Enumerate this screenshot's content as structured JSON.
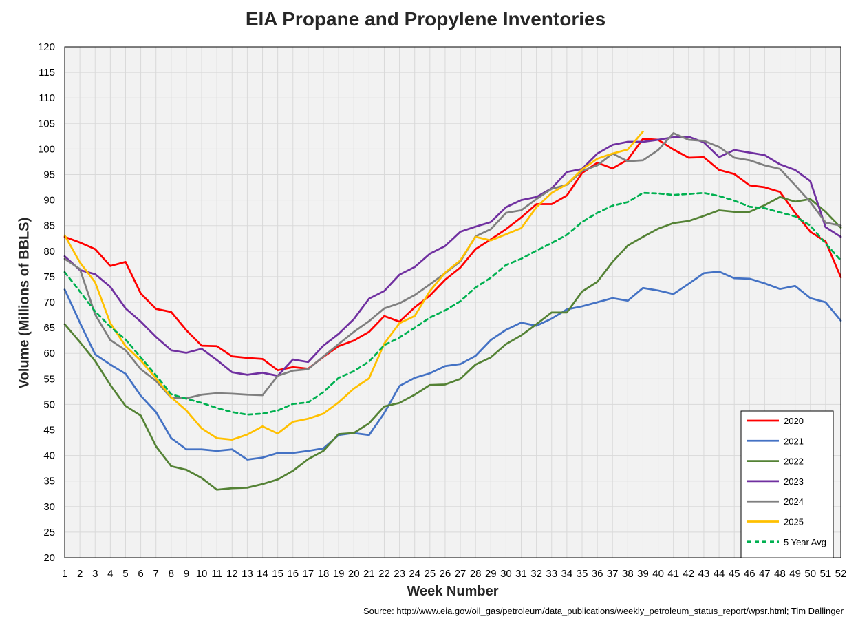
{
  "chart_data": {
    "type": "line",
    "title": "EIA Propane and Propylene Inventories",
    "xlabel": "Week Number",
    "ylabel": "Volume (Millions of BBLS)",
    "source": "Source: http://www.eia.gov/oil_gas/petroleum/data_publications/weekly_petroleum_status_report/wpsr.html; Tim Dallinger",
    "xlim": [
      1,
      52
    ],
    "ylim": [
      20,
      120
    ],
    "ytick_step": 5,
    "grid": true,
    "legend_position": "bottom-right",
    "x": [
      1,
      2,
      3,
      4,
      5,
      6,
      7,
      8,
      9,
      10,
      11,
      12,
      13,
      14,
      15,
      16,
      17,
      18,
      19,
      20,
      21,
      22,
      23,
      24,
      25,
      26,
      27,
      28,
      29,
      30,
      31,
      32,
      33,
      34,
      35,
      36,
      37,
      38,
      39,
      40,
      41,
      42,
      43,
      44,
      45,
      46,
      47,
      48,
      49,
      50,
      51,
      52
    ],
    "series": [
      {
        "name": "2020",
        "color": "#ff0000",
        "dashed": false,
        "values": [
          82.8,
          81.7,
          80.4,
          77.1,
          77.9,
          71.7,
          68.7,
          68.1,
          64.5,
          61.5,
          61.4,
          59.4,
          59.1,
          58.9,
          56.7,
          57.3,
          57.0,
          59.3,
          61.4,
          62.5,
          64.2,
          67.3,
          66.2,
          69.0,
          71.3,
          74.4,
          76.8,
          80.4,
          82.3,
          84.3,
          86.6,
          89.2,
          89.2,
          90.9,
          95.3,
          97.3,
          96.2,
          97.9,
          102.0,
          101.8,
          99.9,
          98.3,
          98.4,
          95.9,
          95.1,
          92.9,
          92.5,
          91.6,
          87.5,
          83.8,
          81.9,
          74.9
        ]
      },
      {
        "name": "2021",
        "color": "#4472c4",
        "dashed": false,
        "values": [
          72.5,
          66.0,
          59.8,
          57.8,
          56.0,
          51.7,
          48.5,
          43.4,
          41.2,
          41.2,
          40.9,
          41.2,
          39.2,
          39.6,
          40.5,
          40.5,
          40.9,
          41.4,
          44.0,
          44.4,
          44.0,
          48.3,
          53.6,
          55.2,
          56.1,
          57.5,
          57.9,
          59.5,
          62.6,
          64.6,
          66.0,
          65.4,
          66.8,
          68.6,
          69.2,
          70.0,
          70.8,
          70.3,
          72.8,
          72.3,
          71.6,
          73.6,
          75.7,
          76.0,
          74.7,
          74.6,
          73.7,
          72.6,
          73.2,
          70.8,
          70.0,
          66.4
        ]
      },
      {
        "name": "2022",
        "color": "#548235",
        "dashed": false,
        "values": [
          65.7,
          62.2,
          58.5,
          53.8,
          49.7,
          47.8,
          41.8,
          37.9,
          37.2,
          35.6,
          33.3,
          33.6,
          33.7,
          34.4,
          35.3,
          37.0,
          39.3,
          40.9,
          44.2,
          44.4,
          46.3,
          49.6,
          50.3,
          51.9,
          53.8,
          53.9,
          55.0,
          57.8,
          59.2,
          61.8,
          63.5,
          65.7,
          68.0,
          68.0,
          72.1,
          74.0,
          77.9,
          81.1,
          82.8,
          84.4,
          85.5,
          85.9,
          86.9,
          88.0,
          87.7,
          87.7,
          89.0,
          90.6,
          89.7,
          90.2,
          87.7,
          84.6
        ]
      },
      {
        "name": "2023",
        "color": "#7030a0",
        "dashed": false,
        "values": [
          79.0,
          76.3,
          75.5,
          73.0,
          68.8,
          66.2,
          63.2,
          60.6,
          60.1,
          60.9,
          58.7,
          56.3,
          55.8,
          56.2,
          55.6,
          58.8,
          58.3,
          61.5,
          63.8,
          66.7,
          70.7,
          72.2,
          75.4,
          76.9,
          79.5,
          81.0,
          83.8,
          84.8,
          85.7,
          88.6,
          90.0,
          90.6,
          92.3,
          95.5,
          96.1,
          99.1,
          100.8,
          101.4,
          101.4,
          101.8,
          102.3,
          102.4,
          101.3,
          98.4,
          99.8,
          99.3,
          98.8,
          97.0,
          95.9,
          93.7,
          84.7,
          82.8
        ]
      },
      {
        "name": "2024",
        "color": "#7f7f7f",
        "dashed": false,
        "values": [
          78.5,
          76.5,
          67.6,
          62.6,
          60.6,
          56.9,
          54.6,
          51.3,
          51.2,
          51.9,
          52.2,
          52.1,
          51.9,
          51.8,
          55.6,
          56.6,
          56.9,
          59.4,
          61.8,
          64.2,
          66.3,
          68.8,
          69.8,
          71.4,
          73.5,
          75.7,
          78.0,
          82.9,
          84.3,
          87.5,
          88.0,
          90.2,
          92.2,
          93.0,
          95.7,
          96.8,
          99.1,
          97.6,
          97.8,
          99.8,
          103.1,
          101.8,
          101.6,
          100.4,
          98.3,
          97.8,
          96.8,
          96.1,
          92.9,
          89.6,
          85.6,
          85.0
        ]
      },
      {
        "name": "2025",
        "color": "#ffc000",
        "dashed": false,
        "values": [
          83.1,
          77.8,
          73.9,
          65.9,
          61.4,
          58.6,
          55.1,
          51.4,
          48.8,
          45.3,
          43.4,
          43.1,
          44.1,
          45.7,
          44.3,
          46.6,
          47.2,
          48.2,
          50.4,
          53.1,
          55.1,
          61.9,
          65.9,
          67.3,
          72.2,
          75.8,
          78.2,
          82.8,
          82.1,
          83.3,
          84.5,
          88.6,
          91.4,
          93.1,
          96.0,
          98.1,
          99.1,
          99.9,
          103.4,
          null,
          null,
          null,
          null,
          null,
          null,
          null,
          null,
          null,
          null,
          null,
          null,
          null
        ]
      },
      {
        "name": "5 Year Avg",
        "color": "#00b050",
        "dashed": true,
        "values": [
          75.9,
          72.1,
          68.2,
          65.2,
          62.7,
          59.2,
          55.7,
          52.0,
          51.1,
          50.3,
          49.3,
          48.5,
          48.0,
          48.2,
          48.8,
          50.1,
          50.4,
          52.4,
          55.2,
          56.5,
          58.4,
          61.6,
          63.1,
          65.0,
          67.0,
          68.4,
          70.2,
          72.9,
          74.8,
          77.3,
          78.5,
          80.1,
          81.6,
          83.2,
          85.7,
          87.5,
          88.9,
          89.6,
          91.4,
          91.3,
          91.0,
          91.2,
          91.4,
          90.8,
          89.9,
          88.7,
          88.4,
          87.6,
          86.8,
          85.0,
          81.5,
          78.2
        ]
      }
    ]
  }
}
